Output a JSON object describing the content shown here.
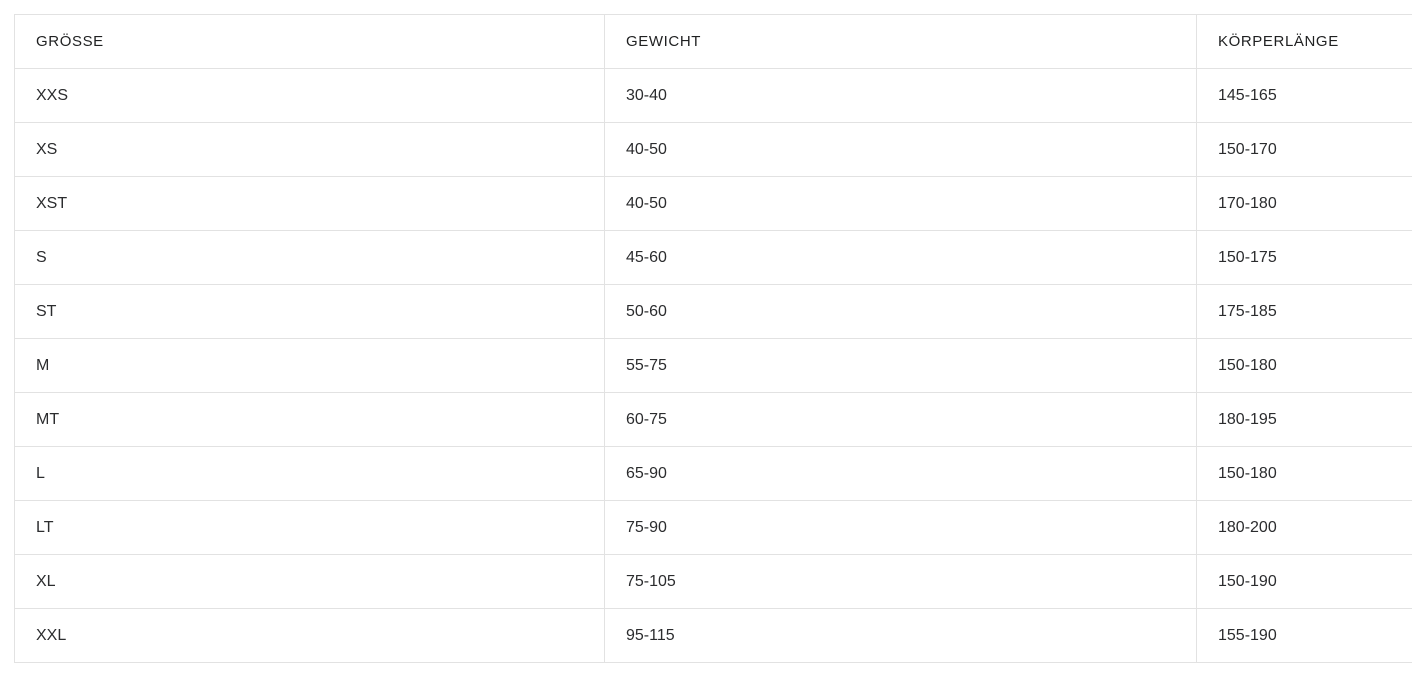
{
  "table": {
    "name": "size-chart",
    "columns": [
      {
        "key": "size",
        "label": "GRÖSSE"
      },
      {
        "key": "weight",
        "label": "GEWICHT"
      },
      {
        "key": "height",
        "label": "KÖRPERLÄNGE"
      }
    ],
    "rows": [
      {
        "size": "XXS",
        "weight": "30-40",
        "height": "145-165"
      },
      {
        "size": "XS",
        "weight": "40-50",
        "height": "150-170"
      },
      {
        "size": "XST",
        "weight": "40-50",
        "height": "170-180"
      },
      {
        "size": "S",
        "weight": "45-60",
        "height": "150-175"
      },
      {
        "size": "ST",
        "weight": "50-60",
        "height": "175-185"
      },
      {
        "size": "M",
        "weight": "55-75",
        "height": "150-180"
      },
      {
        "size": "MT",
        "weight": "60-75",
        "height": "180-195"
      },
      {
        "size": "L",
        "weight": "65-90",
        "height": "150-180"
      },
      {
        "size": "LT",
        "weight": "75-90",
        "height": "180-200"
      },
      {
        "size": "XL",
        "weight": "75-105",
        "height": "150-190"
      },
      {
        "size": "XXL",
        "weight": "95-115",
        "height": "155-190"
      }
    ],
    "colors": {
      "border": "#e2e2e2",
      "header_text": "#1f2021",
      "body_text": "#2b2c2e",
      "background": "#ffffff"
    }
  }
}
